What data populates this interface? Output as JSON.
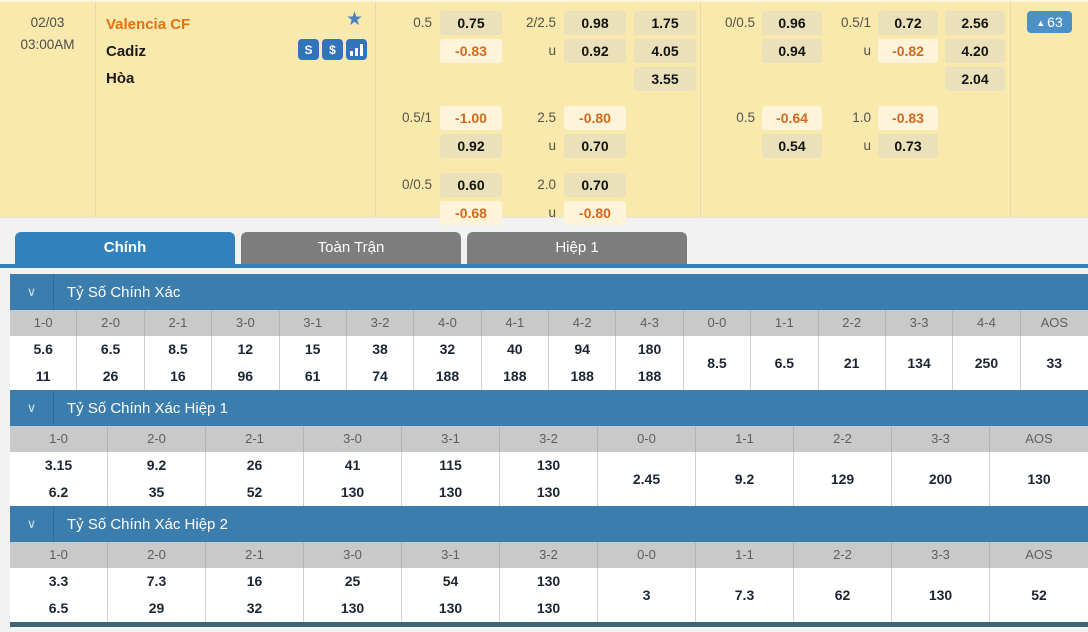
{
  "match": {
    "date": "02/03",
    "time": "03:00AM",
    "home_team": "Valencia CF",
    "away_team": "Cadiz",
    "draw_label": "Hòa",
    "more_markets_count": "63"
  },
  "icons": {
    "star_glyph": "★",
    "slip_glyph": "S",
    "dollar_glyph": "$",
    "chevron_glyph": "∨",
    "arrow_up_glyph": "▲"
  },
  "colors": {
    "accent_blue": "#3181bc",
    "section_blue": "#3b7dad",
    "row_cream": "#f9e9ac",
    "odds_cell_tan": "#eae0ba",
    "negative_cell_cream": "#fdf4da",
    "negative_orange": "#d4691e",
    "home_team_orange": "#e4700e"
  },
  "tabs": [
    {
      "label": "Chính",
      "active": true
    },
    {
      "label": "Toàn Trận",
      "active": false
    },
    {
      "label": "Hiệp 1",
      "active": false
    }
  ],
  "odds": {
    "under_label": "u",
    "halves": [
      {
        "groups": [
          {
            "hdp_label": "0.5",
            "hdp": [
              "0.75",
              "-0.83"
            ],
            "ou_label": "2/2.5",
            "ou": [
              "0.98",
              "0.92"
            ],
            "x12": [
              "1.75",
              "4.05",
              "3.55"
            ]
          },
          {
            "hdp_label": "0.5/1",
            "hdp": [
              "-1.00",
              "0.92"
            ],
            "ou_label": "2.5",
            "ou": [
              "-0.80",
              "0.70"
            ]
          },
          {
            "hdp_label": "0/0.5",
            "hdp": [
              "0.60",
              "-0.68"
            ],
            "ou_label": "2.0",
            "ou": [
              "0.70",
              "-0.80"
            ]
          }
        ]
      },
      {
        "groups": [
          {
            "hdp_label": "0/0.5",
            "hdp": [
              "0.96",
              "0.94"
            ],
            "ou_label": "0.5/1",
            "ou": [
              "0.72",
              "-0.82"
            ],
            "x12": [
              "2.56",
              "4.20",
              "2.04"
            ]
          },
          {
            "hdp_label": "0.5",
            "hdp": [
              "-0.64",
              "0.54"
            ],
            "ou_label": "1.0",
            "ou": [
              "-0.83",
              "0.73"
            ]
          }
        ]
      }
    ]
  },
  "score_sections": [
    {
      "title": "Tỷ Số Chính Xác",
      "columns": [
        {
          "score": "1-0",
          "odds": [
            "5.6",
            "11"
          ]
        },
        {
          "score": "2-0",
          "odds": [
            "6.5",
            "26"
          ]
        },
        {
          "score": "2-1",
          "odds": [
            "8.5",
            "16"
          ]
        },
        {
          "score": "3-0",
          "odds": [
            "12",
            "96"
          ]
        },
        {
          "score": "3-1",
          "odds": [
            "15",
            "61"
          ]
        },
        {
          "score": "3-2",
          "odds": [
            "38",
            "74"
          ]
        },
        {
          "score": "4-0",
          "odds": [
            "32",
            "188"
          ]
        },
        {
          "score": "4-1",
          "odds": [
            "40",
            "188"
          ]
        },
        {
          "score": "4-2",
          "odds": [
            "94",
            "188"
          ]
        },
        {
          "score": "4-3",
          "odds": [
            "180",
            "188"
          ]
        },
        {
          "score": "0-0",
          "odds": [
            "8.5"
          ]
        },
        {
          "score": "1-1",
          "odds": [
            "6.5"
          ]
        },
        {
          "score": "2-2",
          "odds": [
            "21"
          ]
        },
        {
          "score": "3-3",
          "odds": [
            "134"
          ]
        },
        {
          "score": "4-4",
          "odds": [
            "250"
          ]
        },
        {
          "score": "AOS",
          "odds": [
            "33"
          ]
        }
      ]
    },
    {
      "title": "Tỷ Số Chính Xác Hiệp 1",
      "columns": [
        {
          "score": "1-0",
          "odds": [
            "3.15",
            "6.2"
          ]
        },
        {
          "score": "2-0",
          "odds": [
            "9.2",
            "35"
          ]
        },
        {
          "score": "2-1",
          "odds": [
            "26",
            "52"
          ]
        },
        {
          "score": "3-0",
          "odds": [
            "41",
            "130"
          ]
        },
        {
          "score": "3-1",
          "odds": [
            "115",
            "130"
          ]
        },
        {
          "score": "3-2",
          "odds": [
            "130",
            "130"
          ]
        },
        {
          "score": "0-0",
          "odds": [
            "2.45"
          ]
        },
        {
          "score": "1-1",
          "odds": [
            "9.2"
          ]
        },
        {
          "score": "2-2",
          "odds": [
            "129"
          ]
        },
        {
          "score": "3-3",
          "odds": [
            "200"
          ]
        },
        {
          "score": "AOS",
          "odds": [
            "130"
          ]
        }
      ]
    },
    {
      "title": "Tỷ Số Chính Xác Hiệp 2",
      "columns": [
        {
          "score": "1-0",
          "odds": [
            "3.3",
            "6.5"
          ]
        },
        {
          "score": "2-0",
          "odds": [
            "7.3",
            "29"
          ]
        },
        {
          "score": "2-1",
          "odds": [
            "16",
            "32"
          ]
        },
        {
          "score": "3-0",
          "odds": [
            "25",
            "130"
          ]
        },
        {
          "score": "3-1",
          "odds": [
            "54",
            "130"
          ]
        },
        {
          "score": "3-2",
          "odds": [
            "130",
            "130"
          ]
        },
        {
          "score": "0-0",
          "odds": [
            "3"
          ]
        },
        {
          "score": "1-1",
          "odds": [
            "7.3"
          ]
        },
        {
          "score": "2-2",
          "odds": [
            "62"
          ]
        },
        {
          "score": "3-3",
          "odds": [
            "130"
          ]
        },
        {
          "score": "AOS",
          "odds": [
            "52"
          ]
        }
      ]
    }
  ]
}
